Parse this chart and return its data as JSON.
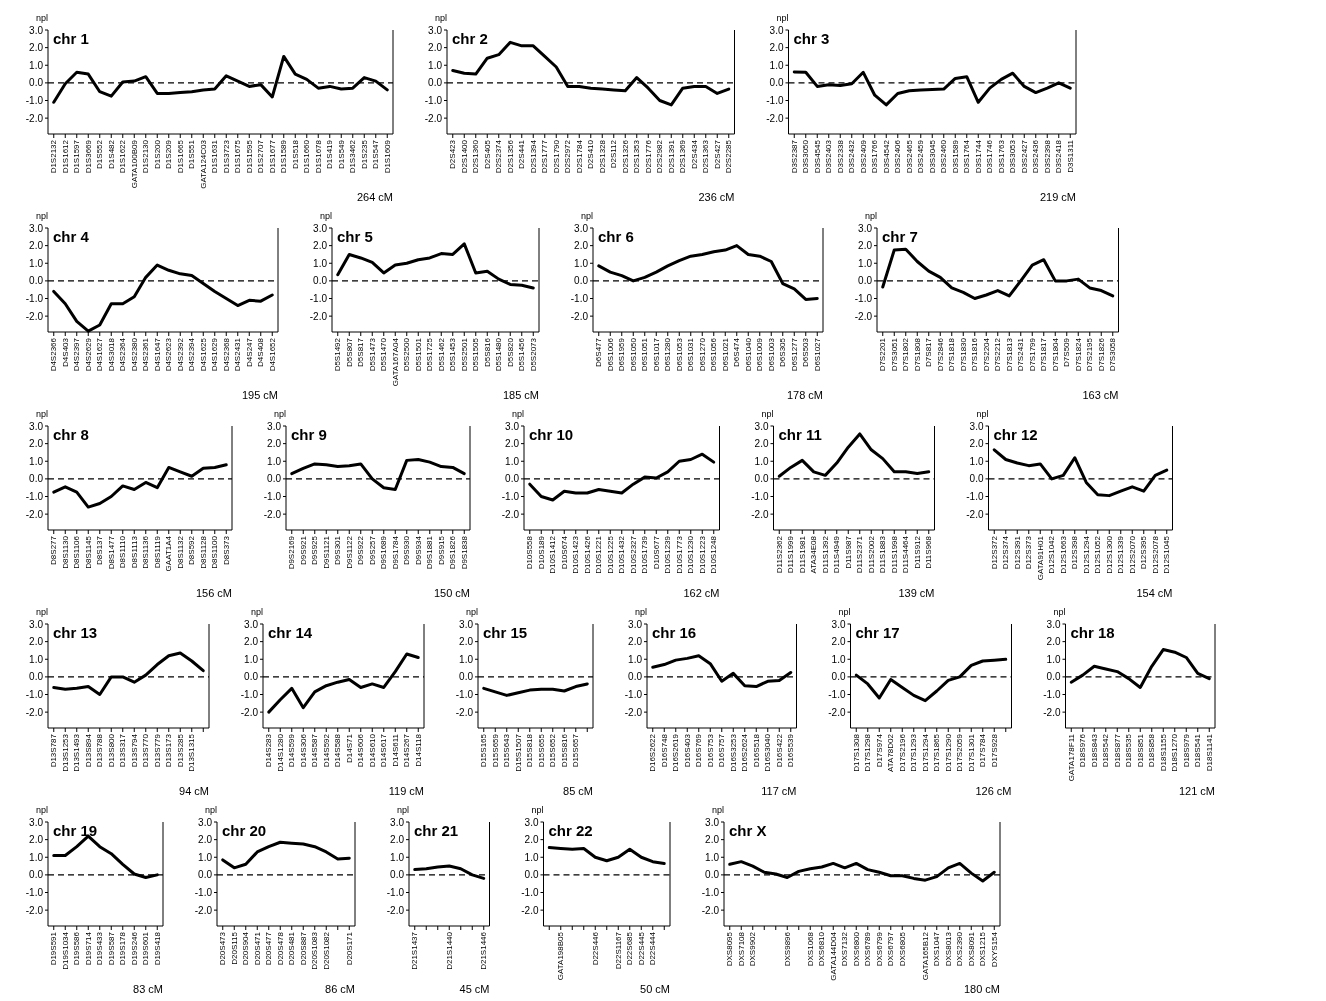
{
  "chart_data": [
    {
      "type": "line",
      "title": "chr 1",
      "ylabel": "npl",
      "xlabel": "264 cM",
      "ylim": [
        -2.9,
        3.0
      ],
      "color": "#000000",
      "yticks": [
        {
          "value": -2,
          "label": "-2.0"
        },
        {
          "value": -1,
          "label": "-1.0"
        },
        {
          "value": 0,
          "label": "0.0"
        },
        {
          "value": 1,
          "label": "1.0"
        },
        {
          "value": 2,
          "label": "2.0"
        },
        {
          "value": 3,
          "label": "3.0"
        }
      ],
      "ref_lines": [
        {
          "axis": "y",
          "value": 0,
          "line_style": "dashed"
        }
      ],
      "categories": [
        "D1S2132",
        "D1S1612",
        "D1S1597",
        "D1S3669",
        "D1S552",
        "D1S482",
        "D1S1622",
        "GATA100B09",
        "D1S2130",
        "D1S200",
        "D1S209",
        "D1S1665",
        "D1S551",
        "GATA124C03",
        "D1S1631",
        "D1S3723",
        "D1S1675",
        "D1S1595",
        "D1S2707",
        "D1S1677",
        "D1S1589",
        "D1S518",
        "D1S1660",
        "D1S1678",
        "D1S419",
        "D1S549",
        "D1S3462",
        "D1S235",
        "D1S547",
        "D1S1609"
      ],
      "values": [
        -1.1,
        -0.05,
        0.6,
        0.5,
        -0.5,
        -0.75,
        0.05,
        0.1,
        0.35,
        -0.6,
        -0.6,
        -0.55,
        -0.5,
        -0.4,
        -0.35,
        0.4,
        0.1,
        -0.2,
        -0.1,
        -0.8,
        1.5,
        0.5,
        0.2,
        -0.3,
        -0.2,
        -0.35,
        -0.3,
        0.3,
        0.1,
        -0.4
      ]
    },
    {
      "type": "line",
      "title": "chr 2",
      "ylabel": "npl",
      "xlabel": "236 cM",
      "ylim": [
        -2.9,
        3.0
      ],
      "color": "#000000",
      "yticks": [
        {
          "value": -2,
          "label": "-2.0"
        },
        {
          "value": -1,
          "label": "-1.0"
        },
        {
          "value": 0,
          "label": "0.0"
        },
        {
          "value": 1,
          "label": "1.0"
        },
        {
          "value": 2,
          "label": "2.0"
        },
        {
          "value": 3,
          "label": "3.0"
        }
      ],
      "ref_lines": [
        {
          "axis": "y",
          "value": 0,
          "line_style": "dashed"
        }
      ],
      "categories": [
        "D2S423",
        "D2S1400",
        "D2S1360",
        "D2S405",
        "D2S2374",
        "D2S1356",
        "D2S441",
        "D2S1394",
        "D2S1777",
        "D2S1790",
        "D2S2972",
        "D2S1784",
        "D2S410",
        "D2S1328",
        "D2S112",
        "D2S1326",
        "D2S1353",
        "D2S1776",
        "D2S2982",
        "D2S1391",
        "D2S1369",
        "D2S434",
        "D2S1363",
        "D2S427",
        "D2S2285"
      ],
      "values": [
        0.7,
        0.55,
        0.5,
        1.4,
        1.6,
        2.3,
        2.1,
        2.1,
        1.5,
        0.9,
        -0.2,
        -0.2,
        -0.3,
        -0.35,
        -0.4,
        -0.45,
        0.3,
        -0.3,
        -1.0,
        -1.25,
        -0.3,
        -0.2,
        -0.2,
        -0.6,
        -0.35
      ]
    },
    {
      "type": "line",
      "title": "chr 3",
      "ylabel": "npl",
      "xlabel": "219 cM",
      "ylim": [
        -2.9,
        3.0
      ],
      "color": "#000000",
      "yticks": [
        {
          "value": -2,
          "label": "-2.0"
        },
        {
          "value": -1,
          "label": "-1.0"
        },
        {
          "value": 0,
          "label": "0.0"
        },
        {
          "value": 1,
          "label": "1.0"
        },
        {
          "value": 2,
          "label": "2.0"
        },
        {
          "value": 3,
          "label": "3.0"
        }
      ],
      "ref_lines": [
        {
          "axis": "y",
          "value": 0,
          "line_style": "dashed"
        }
      ],
      "categories": [
        "D3S2387",
        "D3S3050",
        "D3S4545",
        "D3S2403",
        "D3S2338",
        "D3S2432",
        "D3S2409",
        "D3S1766",
        "D3S4542",
        "D3S2406",
        "D3S2465",
        "D3S2459",
        "D3S3045",
        "D3S2460",
        "D3S1589",
        "D3S1764",
        "D3S1744",
        "D3S1746",
        "D3S1763",
        "D3S3053",
        "D3S2427",
        "D3S2436",
        "D3S2398",
        "D3S2418",
        "D3S1311"
      ],
      "values": [
        0.62,
        0.6,
        -0.2,
        -0.1,
        -0.15,
        -0.05,
        0.6,
        -0.7,
        -1.25,
        -0.6,
        -0.45,
        -0.4,
        -0.38,
        -0.35,
        0.25,
        0.35,
        -1.1,
        -0.3,
        0.2,
        0.55,
        -0.2,
        -0.55,
        -0.3,
        0.0,
        -0.3
      ]
    },
    {
      "type": "line",
      "title": "chr 4",
      "ylabel": "npl",
      "xlabel": "195 cM",
      "ylim": [
        -2.9,
        3.0
      ],
      "color": "#000000",
      "yticks": [
        {
          "value": -2,
          "label": "-2.0"
        },
        {
          "value": -1,
          "label": "-1.0"
        },
        {
          "value": 0,
          "label": "0.0"
        },
        {
          "value": 1,
          "label": "1.0"
        },
        {
          "value": 2,
          "label": "2.0"
        },
        {
          "value": 3,
          "label": "3.0"
        }
      ],
      "ref_lines": [
        {
          "axis": "y",
          "value": 0,
          "line_style": "dashed"
        }
      ],
      "categories": [
        "D4S2366",
        "D4S403",
        "D4S2397",
        "D4S2629",
        "D4S1627",
        "D4S3018",
        "D4S2364",
        "D4S2380",
        "D4S2361",
        "D4S1647",
        "D4S2623",
        "D4S2392",
        "D4S2394",
        "D4S1625",
        "D4S1629",
        "D4S2368",
        "D4S2431",
        "D4S247",
        "D4S408",
        "D4S1652"
      ],
      "values": [
        -0.6,
        -1.3,
        -2.3,
        -2.85,
        -2.5,
        -1.3,
        -1.3,
        -0.9,
        0.2,
        0.9,
        0.6,
        0.4,
        0.3,
        -0.15,
        -0.6,
        -1.0,
        -1.4,
        -1.1,
        -1.15,
        -0.8
      ]
    },
    {
      "type": "line",
      "title": "chr 5",
      "ylabel": "npl",
      "xlabel": "185 cM",
      "ylim": [
        -2.9,
        3.0
      ],
      "color": "#000000",
      "yticks": [
        {
          "value": -2,
          "label": "-2.0"
        },
        {
          "value": -1,
          "label": "-1.0"
        },
        {
          "value": 0,
          "label": "0.0"
        },
        {
          "value": 1,
          "label": "1.0"
        },
        {
          "value": 2,
          "label": "2.0"
        },
        {
          "value": 3,
          "label": "3.0"
        }
      ],
      "ref_lines": [
        {
          "axis": "y",
          "value": 0,
          "line_style": "dashed"
        }
      ],
      "categories": [
        "D5S1492",
        "D5S807",
        "D5S817",
        "D5S1473",
        "D5S1470",
        "GATA167A04",
        "D5S2500",
        "D5S1501",
        "D5S1725",
        "D5S1462",
        "D5S1453",
        "D5S2501",
        "D5S1505",
        "D5S816",
        "D5S1480",
        "D5S820",
        "D5S1456",
        "D5S2073"
      ],
      "values": [
        0.35,
        1.5,
        1.3,
        1.05,
        0.45,
        0.9,
        1.0,
        1.2,
        1.3,
        1.55,
        1.5,
        2.1,
        0.45,
        0.55,
        0.1,
        -0.2,
        -0.25,
        -0.4
      ]
    },
    {
      "type": "line",
      "title": "chr 6",
      "ylabel": "npl",
      "xlabel": "178 cM",
      "ylim": [
        -2.9,
        3.0
      ],
      "color": "#000000",
      "yticks": [
        {
          "value": -2,
          "label": "-2.0"
        },
        {
          "value": -1,
          "label": "-1.0"
        },
        {
          "value": 0,
          "label": "0.0"
        },
        {
          "value": 1,
          "label": "1.0"
        },
        {
          "value": 2,
          "label": "2.0"
        },
        {
          "value": 3,
          "label": "3.0"
        }
      ],
      "ref_lines": [
        {
          "axis": "y",
          "value": 0,
          "line_style": "dashed"
        }
      ],
      "categories": [
        "D6S477",
        "D6S1006",
        "D6S1959",
        "D6S1050",
        "D6S1051",
        "D6S1017",
        "D6S1280",
        "D6S1053",
        "D6S1031",
        "D6S1270",
        "D6S1056",
        "D6S1021",
        "D6S474",
        "D6S1040",
        "D6S1009",
        "D6S1003",
        "D6S305",
        "D6S1277",
        "D6S503",
        "D6S1027"
      ],
      "values": [
        0.85,
        0.5,
        0.3,
        0.0,
        0.2,
        0.5,
        0.85,
        1.15,
        1.4,
        1.5,
        1.65,
        1.75,
        2.0,
        1.5,
        1.4,
        1.1,
        -0.15,
        -0.45,
        -1.05,
        -1.0
      ]
    },
    {
      "type": "line",
      "title": "chr 7",
      "ylabel": "npl",
      "xlabel": "163 cM",
      "ylim": [
        -2.9,
        3.0
      ],
      "color": "#000000",
      "yticks": [
        {
          "value": -2,
          "label": "-2.0"
        },
        {
          "value": -1,
          "label": "-1.0"
        },
        {
          "value": 0,
          "label": "0.0"
        },
        {
          "value": 1,
          "label": "1.0"
        },
        {
          "value": 2,
          "label": "2.0"
        },
        {
          "value": 3,
          "label": "3.0"
        }
      ],
      "ref_lines": [
        {
          "axis": "y",
          "value": 0,
          "line_style": "dashed"
        }
      ],
      "categories": [
        "D7S2201",
        "D7S3051",
        "D7S1802",
        "D7S1808",
        "D7S817",
        "D7S2846",
        "D7S1818",
        "D7S1830",
        "D7S1816",
        "D7S2204",
        "D7S2212",
        "D7S1813",
        "D7S2431",
        "D7S1799",
        "D7S1817",
        "D7S1804",
        "D7S509",
        "D7S1824",
        "D7S2195",
        "D7S1826",
        "D7S3058"
      ],
      "values": [
        -0.35,
        1.75,
        1.8,
        1.1,
        0.55,
        0.2,
        -0.4,
        -0.65,
        -1.0,
        -0.8,
        -0.55,
        -0.85,
        0.0,
        0.9,
        1.2,
        0.0,
        0.0,
        0.1,
        -0.4,
        -0.55,
        -0.85
      ]
    },
    {
      "type": "line",
      "title": "chr 8",
      "ylabel": "npl",
      "xlabel": "156 cM",
      "ylim": [
        -2.9,
        3.0
      ],
      "color": "#000000",
      "yticks": [
        {
          "value": -2,
          "label": "-2.0"
        },
        {
          "value": -1,
          "label": "-1.0"
        },
        {
          "value": 0,
          "label": "0.0"
        },
        {
          "value": 1,
          "label": "1.0"
        },
        {
          "value": 2,
          "label": "2.0"
        },
        {
          "value": 3,
          "label": "3.0"
        }
      ],
      "ref_lines": [
        {
          "axis": "y",
          "value": 0,
          "line_style": "dashed"
        }
      ],
      "categories": [
        "D8S277",
        "D8S1130",
        "D8S1106",
        "D8S1145",
        "D8S137",
        "D8S1477",
        "D8S1110",
        "D8S1113",
        "D8S1136",
        "D8S1119",
        "GAAT1A4",
        "D8S1132",
        "D8S592",
        "D8S1128",
        "D8S1100",
        "D8S373"
      ],
      "values": [
        -0.75,
        -0.45,
        -0.75,
        -1.6,
        -1.4,
        -1.0,
        -0.4,
        -0.6,
        -0.2,
        -0.5,
        0.65,
        0.4,
        0.15,
        0.6,
        0.65,
        0.8
      ]
    },
    {
      "type": "line",
      "title": "chr 9",
      "ylabel": "npl",
      "xlabel": "150 cM",
      "ylim": [
        -2.9,
        3.0
      ],
      "color": "#000000",
      "yticks": [
        {
          "value": -2,
          "label": "-2.0"
        },
        {
          "value": -1,
          "label": "-1.0"
        },
        {
          "value": 0,
          "label": "0.0"
        },
        {
          "value": 1,
          "label": "1.0"
        },
        {
          "value": 2,
          "label": "2.0"
        },
        {
          "value": 3,
          "label": "3.0"
        }
      ],
      "ref_lines": [
        {
          "axis": "y",
          "value": 0,
          "line_style": "dashed"
        }
      ],
      "categories": [
        "D9S2169",
        "D9S921",
        "D9S925",
        "D9S1121",
        "D9S301",
        "D9S1122",
        "D9S922",
        "D9S257",
        "D9S1689",
        "D9S1784",
        "D9S930",
        "D9S934",
        "D9S1881",
        "D9S915",
        "D9S1826",
        "D9S1838"
      ],
      "values": [
        0.3,
        0.6,
        0.85,
        0.8,
        0.7,
        0.75,
        0.85,
        0.0,
        -0.5,
        -0.6,
        1.05,
        1.1,
        0.95,
        0.7,
        0.65,
        0.3
      ]
    },
    {
      "type": "line",
      "title": "chr 10",
      "ylabel": "npl",
      "xlabel": "162 cM",
      "ylim": [
        -2.9,
        3.0
      ],
      "color": "#000000",
      "yticks": [
        {
          "value": -2,
          "label": "-2.0"
        },
        {
          "value": -1,
          "label": "-1.0"
        },
        {
          "value": 0,
          "label": "0.0"
        },
        {
          "value": 1,
          "label": "1.0"
        },
        {
          "value": 2,
          "label": "2.0"
        },
        {
          "value": 3,
          "label": "3.0"
        }
      ],
      "ref_lines": [
        {
          "axis": "y",
          "value": 0,
          "line_style": "dashed"
        }
      ],
      "categories": [
        "D10S558",
        "D10S189",
        "D10S1412",
        "D10S674",
        "D10S1423",
        "D10S1426",
        "D10S1221",
        "D10S1225",
        "D10S1432",
        "D10S2327",
        "D10S1739",
        "D10S677",
        "D10S1239",
        "D10S1773",
        "D10S1230",
        "D10S1223",
        "D10S1248"
      ],
      "values": [
        -0.3,
        -1.0,
        -1.2,
        -0.7,
        -0.8,
        -0.8,
        -0.6,
        -0.7,
        -0.8,
        -0.3,
        0.1,
        0.05,
        0.4,
        1.0,
        1.1,
        1.4,
        0.95
      ]
    },
    {
      "type": "line",
      "title": "chr 11",
      "ylabel": "npl",
      "xlabel": "139 cM",
      "ylim": [
        -2.9,
        3.0
      ],
      "color": "#000000",
      "yticks": [
        {
          "value": -2,
          "label": "-2.0"
        },
        {
          "value": -1,
          "label": "-1.0"
        },
        {
          "value": 0,
          "label": "0.0"
        },
        {
          "value": 1,
          "label": "1.0"
        },
        {
          "value": 2,
          "label": "2.0"
        },
        {
          "value": 3,
          "label": "3.0"
        }
      ],
      "ref_lines": [
        {
          "axis": "y",
          "value": 0,
          "line_style": "dashed"
        }
      ],
      "categories": [
        "D11S2362",
        "D11S1999",
        "D11S1981",
        "ATA34E08",
        "D11S1392",
        "D11S4949",
        "D11S987",
        "D11S2371",
        "D11S2002",
        "D11S1883",
        "D11S1998",
        "D11S4464",
        "D11S912",
        "D11S968"
      ],
      "values": [
        0.15,
        0.65,
        1.05,
        0.4,
        0.2,
        0.9,
        1.8,
        2.55,
        1.65,
        1.15,
        0.4,
        0.4,
        0.3,
        0.4
      ]
    },
    {
      "type": "line",
      "title": "chr 12",
      "ylabel": "npl",
      "xlabel": "154 cM",
      "ylim": [
        -2.9,
        3.0
      ],
      "color": "#000000",
      "yticks": [
        {
          "value": -2,
          "label": "-2.0"
        },
        {
          "value": -1,
          "label": "-1.0"
        },
        {
          "value": 0,
          "label": "0.0"
        },
        {
          "value": 1,
          "label": "1.0"
        },
        {
          "value": 2,
          "label": "2.0"
        },
        {
          "value": 3,
          "label": "3.0"
        }
      ],
      "ref_lines": [
        {
          "axis": "y",
          "value": 0,
          "line_style": "dashed"
        }
      ],
      "categories": [
        "D12S372",
        "D12S374",
        "D12S391",
        "D12S373",
        "GATA91H01",
        "D12S1042",
        "D12S1663",
        "D12S398",
        "D12S1294",
        "D12S1052",
        "D12S1300",
        "D12S1339",
        "D12S2070",
        "D12S395",
        "D12S2078",
        "D12S1045"
      ],
      "values": [
        1.65,
        1.1,
        0.9,
        0.75,
        0.85,
        0.0,
        0.2,
        1.2,
        -0.2,
        -0.9,
        -0.95,
        -0.7,
        -0.45,
        -0.7,
        0.2,
        0.5
      ]
    },
    {
      "type": "line",
      "title": "chr 13",
      "ylabel": "npl",
      "xlabel": "94 cM",
      "ylim": [
        -2.9,
        3.0
      ],
      "color": "#000000",
      "yticks": [
        {
          "value": -2,
          "label": "-2.0"
        },
        {
          "value": -1,
          "label": "-1.0"
        },
        {
          "value": 0,
          "label": "0.0"
        },
        {
          "value": 1,
          "label": "1.0"
        },
        {
          "value": 2,
          "label": "2.0"
        },
        {
          "value": 3,
          "label": "3.0"
        }
      ],
      "ref_lines": [
        {
          "axis": "y",
          "value": 0,
          "line_style": "dashed"
        }
      ],
      "categories": [
        "D13S787",
        "D13S1253",
        "D13S1493",
        "D13S894",
        "D13S788",
        "D13S800",
        "D13S317",
        "D13S794",
        "D13S770",
        "D13S779",
        "D13S173",
        "D13S285",
        "D13S1315",
        null
      ],
      "values": [
        -0.6,
        -0.7,
        -0.65,
        -0.55,
        -1.0,
        0.0,
        0.0,
        -0.3,
        0.1,
        0.7,
        1.2,
        1.35,
        0.9,
        0.35
      ]
    },
    {
      "type": "line",
      "title": "chr 14",
      "ylabel": "npl",
      "xlabel": "119 cM",
      "ylim": [
        -2.9,
        3.0
      ],
      "color": "#000000",
      "yticks": [
        {
          "value": -2,
          "label": "-2.0"
        },
        {
          "value": -1,
          "label": "-1.0"
        },
        {
          "value": 0,
          "label": "0.0"
        },
        {
          "value": 1,
          "label": "1.0"
        },
        {
          "value": 2,
          "label": "2.0"
        },
        {
          "value": 3,
          "label": "3.0"
        }
      ],
      "ref_lines": [
        {
          "axis": "y",
          "value": 0,
          "line_style": "dashed"
        }
      ],
      "categories": [
        "D14S283",
        "D14S1280",
        "D14S599",
        "D14S306",
        "D14S587",
        "D14S592",
        "D14S588",
        "D14S71",
        "D14S606",
        "D14S610",
        "D14S617",
        "D14S611",
        "D14S267",
        "D14S118"
      ],
      "values": [
        -2.0,
        -1.3,
        -0.65,
        -1.75,
        -0.85,
        -0.5,
        -0.3,
        -0.15,
        -0.6,
        -0.4,
        -0.6,
        0.3,
        1.3,
        1.1
      ]
    },
    {
      "type": "line",
      "title": "chr 15",
      "ylabel": "npl",
      "xlabel": "85 cM",
      "ylim": [
        -2.9,
        3.0
      ],
      "color": "#000000",
      "yticks": [
        {
          "value": -2,
          "label": "-2.0"
        },
        {
          "value": -1,
          "label": "-1.0"
        },
        {
          "value": 0,
          "label": "0.0"
        },
        {
          "value": 1,
          "label": "1.0"
        },
        {
          "value": 2,
          "label": "2.0"
        },
        {
          "value": 3,
          "label": "3.0"
        }
      ],
      "ref_lines": [
        {
          "axis": "y",
          "value": 0,
          "line_style": "dashed"
        }
      ],
      "categories": [
        "D15S165",
        "D15S659",
        "D15S643",
        "D15S1507",
        "D15S818",
        "D15S655",
        "D15S652",
        "D15S816",
        "D15S657",
        null
      ],
      "values": [
        -0.65,
        -0.85,
        -1.05,
        -0.9,
        -0.75,
        -0.7,
        -0.7,
        -0.8,
        -0.55,
        -0.4
      ]
    },
    {
      "type": "line",
      "title": "chr 16",
      "ylabel": "npl",
      "xlabel": "117 cM",
      "ylim": [
        -2.9,
        3.0
      ],
      "color": "#000000",
      "yticks": [
        {
          "value": -2,
          "label": "-2.0"
        },
        {
          "value": -1,
          "label": "-1.0"
        },
        {
          "value": 0,
          "label": "0.0"
        },
        {
          "value": 1,
          "label": "1.0"
        },
        {
          "value": 2,
          "label": "2.0"
        },
        {
          "value": 3,
          "label": "3.0"
        }
      ],
      "ref_lines": [
        {
          "axis": "y",
          "value": 0,
          "line_style": "dashed"
        }
      ],
      "categories": [
        "D16S2622",
        "D16S748",
        "D16S2619",
        "D16S403",
        "D16S769",
        "D16S753",
        "D16S757",
        "D16S3253",
        "D16S2624",
        "D16S518",
        "D16S3040",
        "D16S422",
        "D16S539"
      ],
      "values": [
        0.55,
        0.7,
        0.95,
        1.05,
        1.2,
        0.75,
        -0.25,
        0.2,
        -0.5,
        -0.55,
        -0.25,
        -0.2,
        0.25
      ]
    },
    {
      "type": "line",
      "title": "chr 17",
      "ylabel": "npl",
      "xlabel": "126 cM",
      "ylim": [
        -2.9,
        3.0
      ],
      "color": "#000000",
      "yticks": [
        {
          "value": -2,
          "label": "-2.0"
        },
        {
          "value": -1,
          "label": "-1.0"
        },
        {
          "value": 0,
          "label": "0.0"
        },
        {
          "value": 1,
          "label": "1.0"
        },
        {
          "value": 2,
          "label": "2.0"
        },
        {
          "value": 3,
          "label": "3.0"
        }
      ],
      "ref_lines": [
        {
          "axis": "y",
          "value": 0,
          "line_style": "dashed"
        }
      ],
      "categories": [
        "D17S1308",
        "D17S1298",
        "D17S974",
        "ATA78D02",
        "D17S2196",
        "D17S1293",
        "D17S1294",
        "D17S1865",
        "D17S1290",
        "D17S2059",
        "D17S1301",
        "D17S784",
        "D17S928",
        null
      ],
      "values": [
        0.1,
        -0.4,
        -1.2,
        -0.15,
        -0.6,
        -1.05,
        -1.35,
        -0.8,
        -0.2,
        0.0,
        0.65,
        0.9,
        0.95,
        1.0
      ]
    },
    {
      "type": "line",
      "title": "chr 18",
      "ylabel": "npl",
      "xlabel": "121 cM",
      "ylim": [
        -2.9,
        3.0
      ],
      "color": "#000000",
      "yticks": [
        {
          "value": -2,
          "label": "-2.0"
        },
        {
          "value": -1,
          "label": "-1.0"
        },
        {
          "value": 0,
          "label": "0.0"
        },
        {
          "value": 1,
          "label": "1.0"
        },
        {
          "value": 2,
          "label": "2.0"
        },
        {
          "value": 3,
          "label": "3.0"
        }
      ],
      "ref_lines": [
        {
          "axis": "y",
          "value": 0,
          "line_style": "dashed"
        }
      ],
      "categories": [
        "GATA178F11",
        "D18S976",
        "D18S843",
        "D18S542",
        "D18S877",
        "D18S535",
        "D18S851",
        "D18S858",
        "D18S1155",
        "D18S1270",
        "D18S979",
        "D18S541",
        "D18S1141"
      ],
      "values": [
        -0.3,
        0.1,
        0.6,
        0.45,
        0.3,
        -0.1,
        -0.6,
        0.6,
        1.55,
        1.4,
        1.1,
        0.2,
        -0.1
      ]
    },
    {
      "type": "line",
      "title": "chr 19",
      "ylabel": "npl",
      "xlabel": "83 cM",
      "ylim": [
        -2.9,
        3.0
      ],
      "color": "#000000",
      "yticks": [
        {
          "value": -2,
          "label": "-2.0"
        },
        {
          "value": -1,
          "label": "-1.0"
        },
        {
          "value": 0,
          "label": "0.0"
        },
        {
          "value": 1,
          "label": "1.0"
        },
        {
          "value": 2,
          "label": "2.0"
        },
        {
          "value": 3,
          "label": "3.0"
        }
      ],
      "ref_lines": [
        {
          "axis": "y",
          "value": 0,
          "line_style": "dashed"
        }
      ],
      "categories": [
        "D19S591",
        "D19S1034",
        "D19S586",
        "D19S714",
        "D19S433",
        "D19S587",
        "D19S178",
        "D19S246",
        "D19S601",
        "D19S418"
      ],
      "values": [
        1.1,
        1.1,
        1.6,
        2.2,
        1.6,
        1.2,
        0.6,
        0.05,
        -0.15,
        0.0
      ]
    },
    {
      "type": "line",
      "title": "chr 20",
      "ylabel": "npl",
      "xlabel": "86 cM",
      "ylim": [
        -2.9,
        3.0
      ],
      "color": "#000000",
      "yticks": [
        {
          "value": -2,
          "label": "-2.0"
        },
        {
          "value": -1,
          "label": "-1.0"
        },
        {
          "value": 0,
          "label": "0.0"
        },
        {
          "value": 1,
          "label": "1.0"
        },
        {
          "value": 2,
          "label": "2.0"
        },
        {
          "value": 3,
          "label": "3.0"
        }
      ],
      "ref_lines": [
        {
          "axis": "y",
          "value": 0,
          "line_style": "dashed"
        }
      ],
      "categories": [
        "D20S473",
        "D20S115",
        "D20S904",
        "D20S471",
        "D20S477",
        "D20S478",
        "D20S481",
        "D20S887",
        "D20S1083",
        "D20S1082",
        null,
        "D20S171"
      ],
      "values": [
        0.85,
        0.4,
        0.6,
        1.3,
        1.6,
        1.85,
        1.8,
        1.75,
        1.6,
        1.3,
        0.9,
        0.95
      ]
    },
    {
      "type": "line",
      "title": "chr 21",
      "ylabel": "npl",
      "xlabel": "45 cM",
      "ylim": [
        -2.9,
        3.0
      ],
      "color": "#000000",
      "yticks": [
        {
          "value": -2,
          "label": "-2.0"
        },
        {
          "value": -1,
          "label": "-1.0"
        },
        {
          "value": 0,
          "label": "0.0"
        },
        {
          "value": 1,
          "label": "1.0"
        },
        {
          "value": 2,
          "label": "2.0"
        },
        {
          "value": 3,
          "label": "3.0"
        }
      ],
      "ref_lines": [
        {
          "axis": "y",
          "value": 0,
          "line_style": "dashed"
        }
      ],
      "categories": [
        "D21S1437",
        null,
        null,
        "D21S1440",
        null,
        null,
        "D21S1446"
      ],
      "values": [
        0.3,
        0.35,
        0.45,
        0.5,
        0.35,
        0.0,
        -0.2
      ]
    },
    {
      "type": "line",
      "title": "chr 22",
      "ylabel": "npl",
      "xlabel": "50 cM",
      "ylim": [
        -2.9,
        3.0
      ],
      "color": "#000000",
      "yticks": [
        {
          "value": -2,
          "label": "-2.0"
        },
        {
          "value": -1,
          "label": "-1.0"
        },
        {
          "value": 0,
          "label": "0.0"
        },
        {
          "value": 1,
          "label": "1.0"
        },
        {
          "value": 2,
          "label": "2.0"
        },
        {
          "value": 3,
          "label": "3.0"
        }
      ],
      "ref_lines": [
        {
          "axis": "y",
          "value": 0,
          "line_style": "dashed"
        }
      ],
      "categories": [
        null,
        "GATA198B05",
        null,
        null,
        "D22S446",
        null,
        "D22S1167",
        "D22S685",
        "D22S445",
        "D22S444",
        null
      ],
      "values": [
        1.55,
        1.5,
        1.45,
        1.5,
        1.0,
        0.8,
        1.0,
        1.45,
        1.0,
        0.75,
        0.65
      ]
    },
    {
      "type": "line",
      "title": "chr X",
      "ylabel": "npl",
      "xlabel": "180 cM",
      "ylim": [
        -2.9,
        3.0
      ],
      "color": "#000000",
      "yticks": [
        {
          "value": -2,
          "label": "-2.0"
        },
        {
          "value": -1,
          "label": "-1.0"
        },
        {
          "value": 0,
          "label": "0.0"
        },
        {
          "value": 1,
          "label": "1.0"
        },
        {
          "value": 2,
          "label": "2.0"
        },
        {
          "value": 3,
          "label": "3.0"
        }
      ],
      "ref_lines": [
        {
          "axis": "y",
          "value": 0,
          "line_style": "dashed"
        }
      ],
      "categories": [
        "DXS8095",
        "DXS7108",
        "DXS9902",
        null,
        null,
        "DXS9896",
        null,
        "DXS1068",
        "DXS6810",
        "GATA144D04",
        "DXS7132",
        "DXS6800",
        "DXS6789",
        "DXS6799",
        "DXS6797",
        "DXS6805",
        null,
        "GATA165B12",
        "DXS1047",
        "DXS8013",
        "DXS2390",
        "DXS8091",
        "DXS1215",
        "DXYS154"
      ],
      "values": [
        0.6,
        0.75,
        0.5,
        0.15,
        0.05,
        -0.15,
        0.2,
        0.35,
        0.45,
        0.65,
        0.4,
        0.65,
        0.3,
        0.15,
        -0.05,
        -0.05,
        -0.2,
        -0.3,
        -0.1,
        0.4,
        0.65,
        0.1,
        -0.35,
        0.15
      ]
    }
  ]
}
